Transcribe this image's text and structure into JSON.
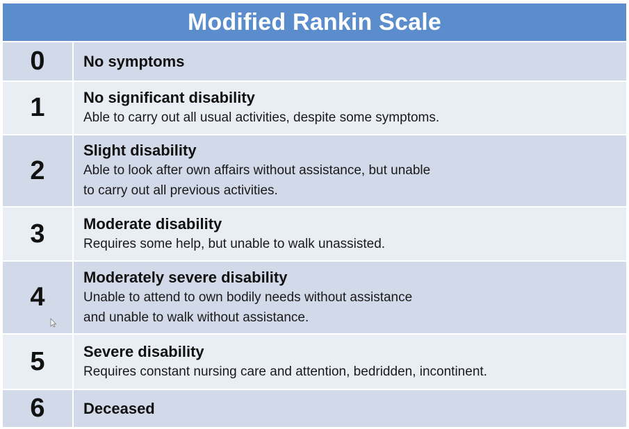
{
  "title": "Modified Rankin Scale",
  "rows": [
    {
      "score": "0",
      "title": "No symptoms",
      "detail": ""
    },
    {
      "score": "1",
      "title": "No significant disability",
      "detail": "Able to carry out all usual activities, despite some symptoms."
    },
    {
      "score": "2",
      "title": "Slight disability",
      "detail": "Able to look after own affairs without assistance, but unable\nto carry out all previous activities."
    },
    {
      "score": "3",
      "title": "Moderate disability",
      "detail": "Requires some help, but unable to walk unassisted."
    },
    {
      "score": "4",
      "title": "Moderately severe disability",
      "detail": "Unable to attend to own bodily needs without assistance\nand unable to walk without assistance."
    },
    {
      "score": "5",
      "title": "Severe disability",
      "detail": "Requires constant nursing care and attention, bedridden, incontinent."
    },
    {
      "score": "6",
      "title": "Deceased",
      "detail": ""
    }
  ],
  "colors": {
    "header": "#5b8ccc",
    "row_dark": "#d2d9e8",
    "row_light": "#e9edf4"
  },
  "icons": {
    "cursor": "mouse-pointer-icon"
  }
}
